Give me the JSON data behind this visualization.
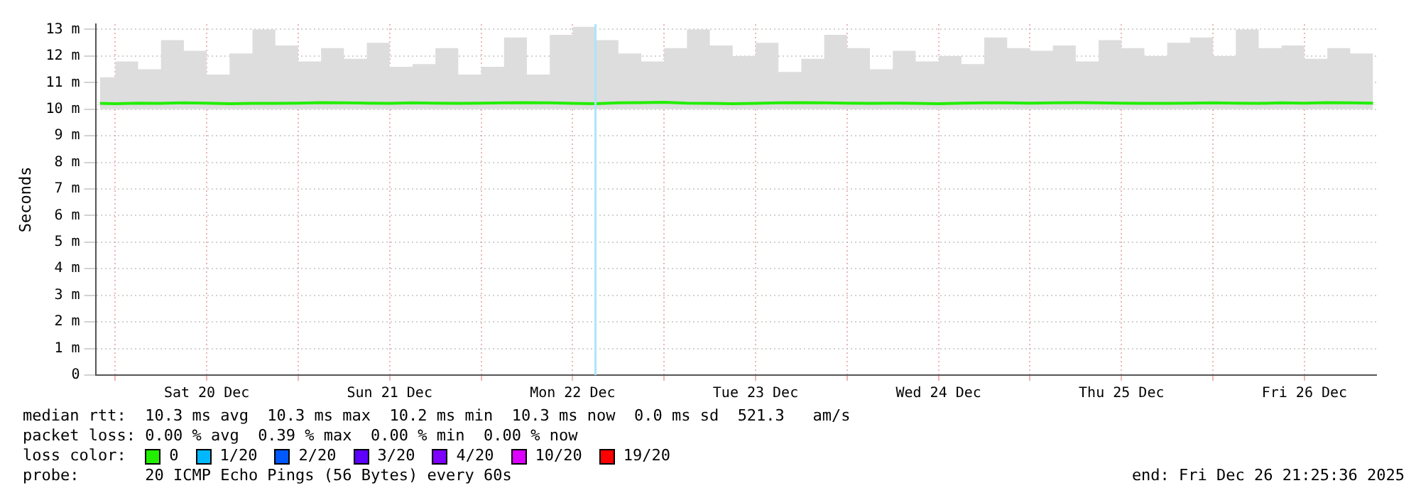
{
  "chart_data": {
    "type": "line",
    "ylabel": "Seconds",
    "x": [
      "2025-12-19T22:00",
      "2025-12-20T00:00",
      "2025-12-20T03:00",
      "2025-12-20T06:00",
      "2025-12-20T09:00",
      "2025-12-20T12:00",
      "2025-12-20T15:00",
      "2025-12-20T18:00",
      "2025-12-20T21:00",
      "2025-12-21T00:00",
      "2025-12-21T03:00",
      "2025-12-21T06:00",
      "2025-12-21T09:00",
      "2025-12-21T12:00",
      "2025-12-21T15:00",
      "2025-12-21T18:00",
      "2025-12-21T21:00",
      "2025-12-22T00:00",
      "2025-12-22T03:00",
      "2025-12-22T06:00",
      "2025-12-22T09:00",
      "2025-12-22T12:00",
      "2025-12-22T15:00",
      "2025-12-22T18:00",
      "2025-12-22T21:00",
      "2025-12-23T00:00",
      "2025-12-23T03:00",
      "2025-12-23T06:00",
      "2025-12-23T09:00",
      "2025-12-23T12:00",
      "2025-12-23T15:00",
      "2025-12-23T18:00",
      "2025-12-23T21:00",
      "2025-12-24T00:00",
      "2025-12-24T03:00",
      "2025-12-24T06:00",
      "2025-12-24T09:00",
      "2025-12-24T12:00",
      "2025-12-24T15:00",
      "2025-12-24T18:00",
      "2025-12-24T21:00",
      "2025-12-25T00:00",
      "2025-12-25T03:00",
      "2025-12-25T06:00",
      "2025-12-25T09:00",
      "2025-12-25T12:00",
      "2025-12-25T15:00",
      "2025-12-25T18:00",
      "2025-12-25T21:00",
      "2025-12-26T00:00",
      "2025-12-26T03:00",
      "2025-12-26T06:00",
      "2025-12-26T09:00",
      "2025-12-26T12:00",
      "2025-12-26T15:00",
      "2025-12-26T18:00",
      "2025-12-26T21:00"
    ],
    "series": [
      {
        "name": "0",
        "color": "#22ee00",
        "values": [
          10.22,
          10.21,
          10.23,
          10.22,
          10.24,
          10.23,
          10.21,
          10.22,
          10.22,
          10.23,
          10.25,
          10.24,
          10.23,
          10.22,
          10.24,
          10.23,
          10.22,
          10.23,
          10.24,
          10.25,
          10.24,
          10.22,
          10.21,
          10.24,
          10.25,
          10.26,
          10.23,
          10.22,
          10.21,
          10.22,
          10.24,
          10.25,
          10.24,
          10.23,
          10.22,
          10.23,
          10.22,
          10.21,
          10.23,
          10.24,
          10.24,
          10.23,
          10.24,
          10.25,
          10.24,
          10.23,
          10.22,
          10.22,
          10.23,
          10.24,
          10.23,
          10.22,
          10.24,
          10.23,
          10.25,
          10.24,
          10.23
        ],
        "lower": [
          10.0,
          10.0,
          10.0,
          10.0,
          10.0,
          10.0,
          10.0,
          10.0,
          10.0,
          10.0,
          10.0,
          10.0,
          10.0,
          10.0,
          10.0,
          10.0,
          10.0,
          10.0,
          10.0,
          10.0,
          10.0,
          10.0,
          10.0,
          10.0,
          10.0,
          10.0,
          10.0,
          10.0,
          10.0,
          10.0,
          10.0,
          10.0,
          10.0,
          10.0,
          10.0,
          10.0,
          10.0,
          10.0,
          10.0,
          10.0,
          10.0,
          10.0,
          10.0,
          10.0,
          10.0,
          10.0,
          10.0,
          10.0,
          10.0,
          10.0,
          10.0,
          10.0,
          10.0,
          10.0,
          10.0,
          10.0,
          10.0
        ],
        "upper": [
          11.2,
          11.8,
          11.5,
          12.6,
          12.2,
          11.3,
          12.1,
          13.0,
          12.4,
          11.8,
          12.3,
          11.9,
          12.5,
          11.6,
          11.7,
          12.3,
          11.3,
          11.6,
          12.7,
          11.3,
          12.8,
          13.1,
          12.6,
          12.1,
          11.8,
          12.3,
          13.0,
          12.4,
          12.0,
          12.5,
          11.4,
          11.9,
          12.8,
          12.3,
          11.5,
          12.2,
          11.8,
          12.0,
          11.7,
          12.7,
          12.3,
          12.2,
          12.4,
          11.8,
          12.6,
          12.3,
          12.0,
          12.5,
          12.7,
          12.0,
          13.0,
          12.3,
          12.4,
          11.9,
          12.3,
          12.1,
          11.8
        ]
      },
      {
        "name": "1/20",
        "color": "#00b8ff",
        "values": [
          null,
          null,
          null,
          null,
          null,
          null,
          null,
          null,
          null,
          null,
          null,
          null,
          null,
          null,
          null,
          null,
          null,
          null,
          null,
          null,
          null,
          null,
          null,
          null,
          null,
          null,
          null,
          null,
          null,
          null,
          null,
          null,
          null,
          null,
          null,
          null,
          null,
          null,
          null,
          null,
          null,
          null,
          null,
          null,
          null,
          null,
          null,
          null,
          null,
          null,
          null,
          null,
          null,
          null,
          null,
          null,
          null
        ]
      },
      {
        "name": "2/20",
        "color": "#0059ff",
        "values": [
          null,
          null,
          null,
          null,
          null,
          null,
          null,
          null,
          null,
          null,
          null,
          null,
          null,
          null,
          null,
          null,
          null,
          null,
          null,
          null,
          null,
          null,
          null,
          null,
          null,
          null,
          null,
          null,
          null,
          null,
          null,
          null,
          null,
          null,
          null,
          null,
          null,
          null,
          null,
          null,
          null,
          null,
          null,
          null,
          null,
          null,
          null,
          null,
          null,
          null,
          null,
          null,
          null,
          null,
          null,
          null,
          null
        ]
      },
      {
        "name": "3/20",
        "color": "#5e00ff",
        "values": [
          null,
          null,
          null,
          null,
          null,
          null,
          null,
          null,
          null,
          null,
          null,
          null,
          null,
          null,
          null,
          null,
          null,
          null,
          null,
          null,
          null,
          null,
          null,
          null,
          null,
          null,
          null,
          null,
          null,
          null,
          null,
          null,
          null,
          null,
          null,
          null,
          null,
          null,
          null,
          null,
          null,
          null,
          null,
          null,
          null,
          null,
          null,
          null,
          null,
          null,
          null,
          null,
          null,
          null,
          null,
          null,
          null
        ]
      },
      {
        "name": "4/20",
        "color": "#7e00ff",
        "values": [
          null,
          null,
          null,
          null,
          null,
          null,
          null,
          null,
          null,
          null,
          null,
          null,
          null,
          null,
          null,
          null,
          null,
          null,
          null,
          null,
          null,
          null,
          null,
          null,
          null,
          null,
          null,
          null,
          null,
          null,
          null,
          null,
          null,
          null,
          null,
          null,
          null,
          null,
          null,
          null,
          null,
          null,
          null,
          null,
          null,
          null,
          null,
          null,
          null,
          null,
          null,
          null,
          null,
          null,
          null,
          null,
          null
        ]
      },
      {
        "name": "10/20",
        "color": "#dd00ff",
        "values": [
          null,
          null,
          null,
          null,
          null,
          null,
          null,
          null,
          null,
          null,
          null,
          null,
          null,
          null,
          null,
          null,
          null,
          null,
          null,
          null,
          null,
          null,
          null,
          null,
          null,
          null,
          null,
          null,
          null,
          null,
          null,
          null,
          null,
          null,
          null,
          null,
          null,
          null,
          null,
          null,
          null,
          null,
          null,
          null,
          null,
          null,
          null,
          null,
          null,
          null,
          null,
          null,
          null,
          null,
          null,
          null,
          null
        ]
      },
      {
        "name": "19/20",
        "color": "#ff0000",
        "values": [
          null,
          null,
          null,
          null,
          null,
          null,
          null,
          null,
          null,
          null,
          null,
          null,
          null,
          null,
          null,
          null,
          null,
          null,
          null,
          null,
          null,
          null,
          null,
          null,
          null,
          null,
          null,
          null,
          null,
          null,
          null,
          null,
          null,
          null,
          null,
          null,
          null,
          null,
          null,
          null,
          null,
          null,
          null,
          null,
          null,
          null,
          null,
          null,
          null,
          null,
          null,
          null,
          null,
          null,
          null,
          null,
          null
        ]
      }
    ],
    "legend": "bottom",
    "legend_title": "loss color:",
    "marker": "none",
    "grid": true,
    "xlim": [
      "2025-12-19T21:25",
      "2025-12-26T21:25"
    ],
    "xticks": [
      {
        "value": "2025-12-20T00:00",
        "label": null
      },
      {
        "value": "2025-12-20T12:00",
        "label": "Sat 20 Dec"
      },
      {
        "value": "2025-12-21T00:00",
        "label": null
      },
      {
        "value": "2025-12-21T12:00",
        "label": "Sun 21 Dec"
      },
      {
        "value": "2025-12-22T00:00",
        "label": null
      },
      {
        "value": "2025-12-22T12:00",
        "label": "Mon 22 Dec"
      },
      {
        "value": "2025-12-23T00:00",
        "label": null
      },
      {
        "value": "2025-12-23T12:00",
        "label": "Tue 23 Dec"
      },
      {
        "value": "2025-12-24T00:00",
        "label": null
      },
      {
        "value": "2025-12-24T12:00",
        "label": "Wed 24 Dec"
      },
      {
        "value": "2025-12-25T00:00",
        "label": null
      },
      {
        "value": "2025-12-25T12:00",
        "label": "Thu 25 Dec"
      },
      {
        "value": "2025-12-26T00:00",
        "label": null
      },
      {
        "value": "2025-12-26T12:00",
        "label": "Fri 26 Dec"
      }
    ],
    "ylim": [
      0,
      13.2
    ],
    "yticks": [
      0,
      {
        "value": 1,
        "label": "1 m"
      },
      {
        "value": 2,
        "label": "2 m"
      },
      {
        "value": 3,
        "label": "3 m"
      },
      {
        "value": 4,
        "label": "4 m"
      },
      {
        "value": 5,
        "label": "5 m"
      },
      {
        "value": 6,
        "label": "6 m"
      },
      {
        "value": 7,
        "label": "7 m"
      },
      {
        "value": 8,
        "label": "8 m"
      },
      {
        "value": 9,
        "label": "9 m"
      },
      {
        "value": 10,
        "label": "10 m"
      },
      {
        "value": 11,
        "label": "11 m"
      },
      {
        "value": 12,
        "label": "12 m"
      },
      {
        "value": 13,
        "label": "13 m"
      }
    ],
    "ref_lines": [
      {
        "axis": "x",
        "value": "2025-12-22T15:00",
        "color": "#a8e8f8"
      }
    ],
    "annotations": [
      "median rtt:  10.3 ms avg  10.3 ms max  10.2 ms min  10.3 ms now  0.0 ms sd  521.3   am/s",
      "packet loss: 0.00 % avg  0.39 % max  0.00 % min  0.00 % now",
      "probe:       20 ICMP Echo Pings (56 Bytes) every 60s",
      "end: Fri Dec 26 21:25:36 2025"
    ]
  }
}
